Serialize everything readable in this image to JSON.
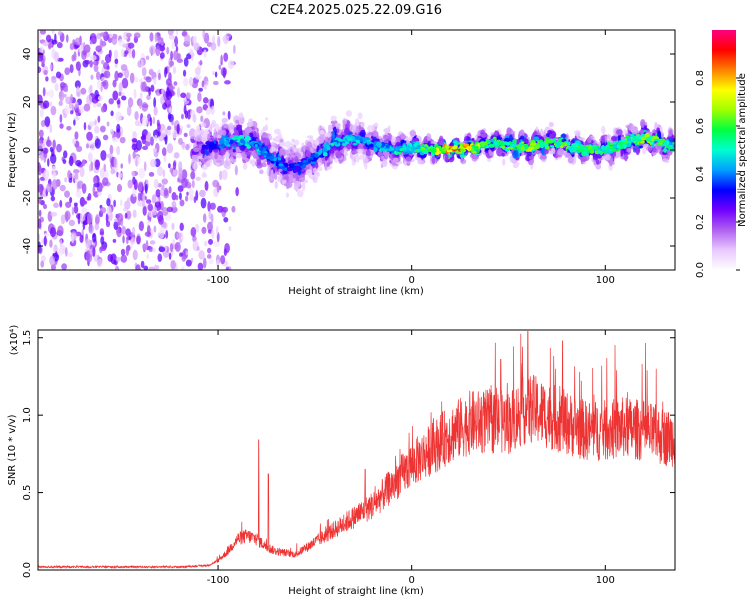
{
  "figure": {
    "title": "C2E4.2025.025.22.09.G16"
  },
  "chart_data": [
    {
      "type": "heatmap",
      "xlabel": "Height of straight line (km)",
      "ylabel": "Frequency (Hz)",
      "xlim": [
        -193,
        136
      ],
      "ylim": [
        -50,
        50
      ],
      "xticks": [
        -100,
        0,
        100
      ],
      "xtick_labels": [
        "-100",
        "0",
        "100"
      ],
      "yticks": [
        -40,
        -20,
        0,
        20,
        40
      ],
      "ytick_labels": [
        "-40",
        "-20",
        "0",
        "20",
        "40"
      ],
      "grid": false,
      "colorbar": {
        "label": "Normalized spectral amplitude",
        "range": [
          0,
          1
        ],
        "ticks": [
          0.0,
          0.2,
          0.4,
          0.6,
          0.8
        ],
        "tick_labels": [
          "0.0",
          "0.2",
          "0.4",
          "0.6",
          "0.8"
        ],
        "colormap": [
          "#ffffff",
          "#e8c8ff",
          "#b060f0",
          "#7000ff",
          "#0000ff",
          "#00a0ff",
          "#00ffd0",
          "#00ff40",
          "#a0ff00",
          "#ffff00",
          "#ff8000",
          "#ff0000",
          "#ff0080"
        ]
      },
      "noise_region_x": [
        -193,
        -100
      ],
      "ridge": {
        "x": [
          -112,
          -100,
          -90,
          -80,
          -70,
          -60,
          -50,
          -40,
          -30,
          -20,
          -10,
          0,
          10,
          20,
          30,
          40,
          50,
          60,
          70,
          80,
          90,
          100,
          110,
          120,
          130,
          136
        ],
        "center_freq": [
          0,
          2,
          4,
          2,
          -5,
          -8,
          -3,
          3,
          5,
          2,
          0,
          1,
          0,
          0,
          1,
          3,
          2,
          1,
          3,
          2,
          0,
          0,
          3,
          5,
          3,
          1
        ],
        "peak_amplitude": [
          0.3,
          0.4,
          0.5,
          0.45,
          0.4,
          0.35,
          0.4,
          0.5,
          0.45,
          0.45,
          0.5,
          0.55,
          0.6,
          0.9,
          0.75,
          0.55,
          0.6,
          0.65,
          0.6,
          0.65,
          0.6,
          0.55,
          0.6,
          0.65,
          0.6,
          0.5
        ],
        "spread_hz": [
          10,
          12,
          13,
          12,
          14,
          14,
          12,
          12,
          10,
          9,
          8,
          7,
          5,
          4,
          5,
          6,
          7,
          7,
          7,
          6,
          6,
          7,
          8,
          8,
          7,
          6
        ]
      }
    },
    {
      "type": "line",
      "xlabel": "Height of straight line (km)",
      "ylabel": "SNR (10 * v/v)",
      "y_multiplier_label": "(x10⁴)",
      "xlim": [
        -193,
        136
      ],
      "ylim": [
        0,
        1.55
      ],
      "xticks": [
        -100,
        0,
        100
      ],
      "xtick_labels": [
        "-100",
        "0",
        "100"
      ],
      "yticks": [
        0.0,
        0.5,
        1.0,
        1.5
      ],
      "ytick_labels": [
        "0.0",
        "0.5",
        "1.0",
        "1.5"
      ],
      "grid": false,
      "series": [
        {
          "color": "#ee3333",
          "x": [
            -193,
            -180,
            -160,
            -140,
            -120,
            -105,
            -100,
            -95,
            -90,
            -85,
            -80,
            -75,
            -70,
            -60,
            -50,
            -40,
            -30,
            -20,
            -10,
            0,
            10,
            20,
            30,
            40,
            50,
            55,
            60,
            70,
            80,
            90,
            100,
            110,
            120,
            130,
            136
          ],
          "y": [
            0.02,
            0.02,
            0.02,
            0.02,
            0.02,
            0.03,
            0.06,
            0.12,
            0.2,
            0.22,
            0.2,
            0.15,
            0.12,
            0.1,
            0.18,
            0.26,
            0.34,
            0.42,
            0.55,
            0.68,
            0.78,
            0.88,
            0.95,
            0.96,
            0.95,
            1.0,
            1.05,
            1.0,
            0.95,
            0.9,
            0.9,
            0.92,
            0.9,
            0.86,
            0.85
          ],
          "spike_peaks": [
            {
              "x": -79,
              "y": 0.84
            },
            {
              "x": -74,
              "y": 0.62
            },
            {
              "x": -24,
              "y": 0.65
            },
            {
              "x": 46,
              "y": 1.36
            },
            {
              "x": 60,
              "y": 1.54
            },
            {
              "x": 78,
              "y": 1.48
            }
          ]
        }
      ]
    }
  ]
}
